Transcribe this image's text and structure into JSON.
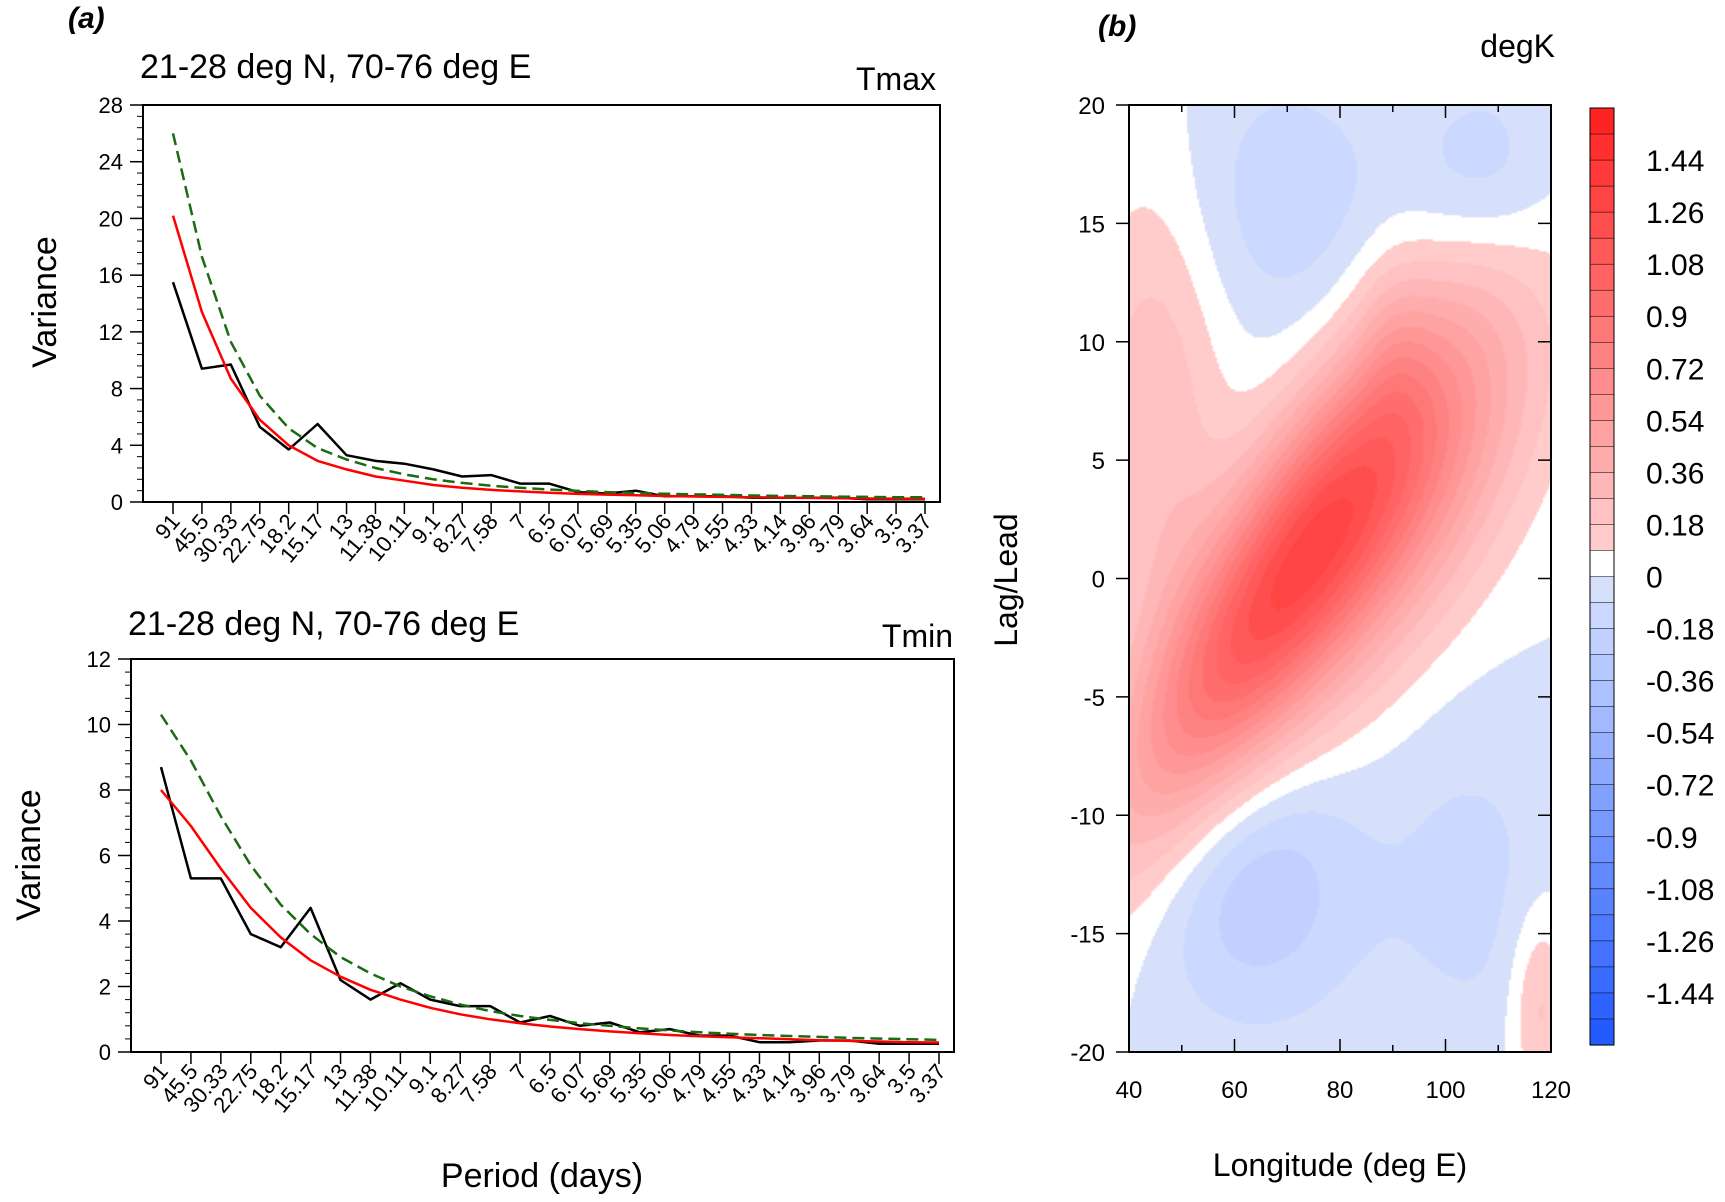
{
  "panel_labels": {
    "a": "(a)",
    "b": "(b)"
  },
  "chart_data": [
    {
      "id": "tmax",
      "type": "line",
      "title": "21-28 deg N, 70-76 deg E",
      "corner_label": "Tmax",
      "ylabel": "Variance",
      "xlabel": "",
      "ylim": [
        0,
        28
      ],
      "y_major_ticks": [
        0,
        4,
        8,
        12,
        16,
        20,
        24,
        28
      ],
      "categories": [
        "91",
        "45.5",
        "30.33",
        "22.75",
        "18.2",
        "15.17",
        "13",
        "11.38",
        "10.11",
        "9.1",
        "8.27",
        "7.58",
        "7",
        "6.5",
        "6.07",
        "5.69",
        "5.35",
        "5.06",
        "4.79",
        "4.55",
        "4.33",
        "4.14",
        "3.96",
        "3.79",
        "3.64",
        "3.5",
        "3.37"
      ],
      "series": [
        {
          "key": "observed",
          "color": "#000000",
          "dashed": false,
          "values": [
            15.5,
            9.4,
            9.7,
            5.3,
            3.7,
            5.5,
            3.3,
            2.9,
            2.7,
            2.3,
            1.8,
            1.9,
            1.3,
            1.3,
            0.7,
            0.6,
            0.8,
            0.4,
            0.4,
            0.4,
            0.3,
            0.3,
            0.3,
            0.3,
            0.2,
            0.2,
            0.2
          ]
        },
        {
          "key": "red-noise",
          "color": "#ff0000",
          "dashed": false,
          "values": [
            20.2,
            13.4,
            8.7,
            5.8,
            4.0,
            2.9,
            2.3,
            1.8,
            1.5,
            1.2,
            1.0,
            0.85,
            0.75,
            0.65,
            0.57,
            0.52,
            0.47,
            0.42,
            0.39,
            0.36,
            0.33,
            0.31,
            0.29,
            0.27,
            0.25,
            0.24,
            0.23
          ]
        },
        {
          "key": "red-noise-95",
          "color": "#1a6b12",
          "dashed": true,
          "values": [
            26.0,
            17.3,
            11.3,
            7.5,
            5.2,
            3.8,
            3.0,
            2.4,
            1.95,
            1.6,
            1.35,
            1.15,
            1.0,
            0.88,
            0.78,
            0.7,
            0.64,
            0.58,
            0.54,
            0.5,
            0.46,
            0.43,
            0.41,
            0.38,
            0.36,
            0.34,
            0.33
          ]
        }
      ]
    },
    {
      "id": "tmin",
      "type": "line",
      "title": "21-28 deg N, 70-76 deg E",
      "corner_label": "Tmin",
      "ylabel": "Variance",
      "xlabel": "Period (days)",
      "ylim": [
        0,
        12
      ],
      "y_major_ticks": [
        0,
        2,
        4,
        6,
        8,
        10,
        12
      ],
      "categories": [
        "91",
        "45.5",
        "30.33",
        "22.75",
        "18.2",
        "15.17",
        "13",
        "11.38",
        "10.11",
        "9.1",
        "8.27",
        "7.58",
        "7",
        "6.5",
        "6.07",
        "5.69",
        "5.35",
        "5.06",
        "4.79",
        "4.55",
        "4.33",
        "4.14",
        "3.96",
        "3.79",
        "3.64",
        "3.5",
        "3.37"
      ],
      "series": [
        {
          "key": "observed",
          "color": "#000000",
          "dashed": false,
          "values": [
            8.7,
            5.3,
            5.3,
            3.6,
            3.2,
            4.4,
            2.2,
            1.6,
            2.1,
            1.6,
            1.4,
            1.4,
            0.9,
            1.1,
            0.8,
            0.9,
            0.6,
            0.7,
            0.5,
            0.5,
            0.3,
            0.3,
            0.35,
            0.35,
            0.25,
            0.25,
            0.25
          ]
        },
        {
          "key": "red-noise",
          "color": "#ff0000",
          "dashed": false,
          "values": [
            8.0,
            6.9,
            5.6,
            4.4,
            3.5,
            2.8,
            2.3,
            1.9,
            1.6,
            1.35,
            1.15,
            1.0,
            0.88,
            0.78,
            0.7,
            0.63,
            0.57,
            0.52,
            0.48,
            0.45,
            0.42,
            0.39,
            0.36,
            0.34,
            0.32,
            0.3,
            0.29
          ]
        },
        {
          "key": "red-noise-95",
          "color": "#1a6b12",
          "dashed": true,
          "values": [
            10.3,
            8.9,
            7.2,
            5.7,
            4.5,
            3.6,
            2.9,
            2.4,
            2.0,
            1.7,
            1.45,
            1.25,
            1.1,
            0.98,
            0.88,
            0.8,
            0.72,
            0.66,
            0.6,
            0.56,
            0.52,
            0.49,
            0.46,
            0.43,
            0.41,
            0.39,
            0.37
          ]
        }
      ]
    },
    {
      "id": "hovmoller",
      "type": "heatmap",
      "corner_label": "degK",
      "xlabel": "Longitude (deg E)",
      "ylabel": "Lag/Lead",
      "xlim": [
        40,
        120
      ],
      "ylim": [
        -20,
        20
      ],
      "x_ticks": [
        40,
        60,
        80,
        100,
        120
      ],
      "y_ticks": [
        -20,
        -15,
        -10,
        -5,
        0,
        5,
        10,
        15,
        20
      ],
      "colorbar_ticks": [
        "1.44",
        "1.26",
        "1.08",
        "0.9",
        "0.72",
        "0.54",
        "0.36",
        "0.18",
        "0",
        "-0.18",
        "-0.36",
        "-0.54",
        "-0.72",
        "-0.9",
        "-1.08",
        "-1.26",
        "-1.44"
      ],
      "colorbar_range": [
        -1.62,
        1.62
      ],
      "colors": {
        "positive": "#ff1a1a",
        "negative": "#1a53ff",
        "zero": "#ffffff"
      },
      "anomaly_features": [
        {
          "lon": 68,
          "lag": -0.5,
          "amplitude": 1.05,
          "sigma_lon": 20,
          "sigma_lag": 4.2,
          "tilt": 0.28
        },
        {
          "lon": 92,
          "lag": 3.5,
          "amplitude": 0.55,
          "sigma_lon": 18,
          "sigma_lag": 4.5,
          "tilt": 0.2
        },
        {
          "lon": 45,
          "lag": 7,
          "amplitude": 0.25,
          "sigma_lon": 9,
          "sigma_lag": 7,
          "tilt": 0
        },
        {
          "lon": 90,
          "lag": 10,
          "amplitude": 0.12,
          "sigma_lon": 5,
          "sigma_lag": 3,
          "tilt": 0
        },
        {
          "lon": 64,
          "lag": -13,
          "amplitude": -0.26,
          "sigma_lon": 14,
          "sigma_lag": 4,
          "tilt": 0
        },
        {
          "lon": 70,
          "lag": 16,
          "amplitude": -0.15,
          "sigma_lon": 14,
          "sigma_lag": 4,
          "tilt": 0
        },
        {
          "lon": 108,
          "lag": 17,
          "amplitude": -0.16,
          "sigma_lon": 10,
          "sigma_lag": 3,
          "tilt": 0
        },
        {
          "lon": 105,
          "lag": -13,
          "amplitude": -0.12,
          "sigma_lon": 12,
          "sigma_lag": 5,
          "tilt": 0
        },
        {
          "lon": 118,
          "lag": -18,
          "amplitude": 0.22,
          "sigma_lon": 4,
          "sigma_lag": 3,
          "tilt": 0
        }
      ]
    }
  ]
}
